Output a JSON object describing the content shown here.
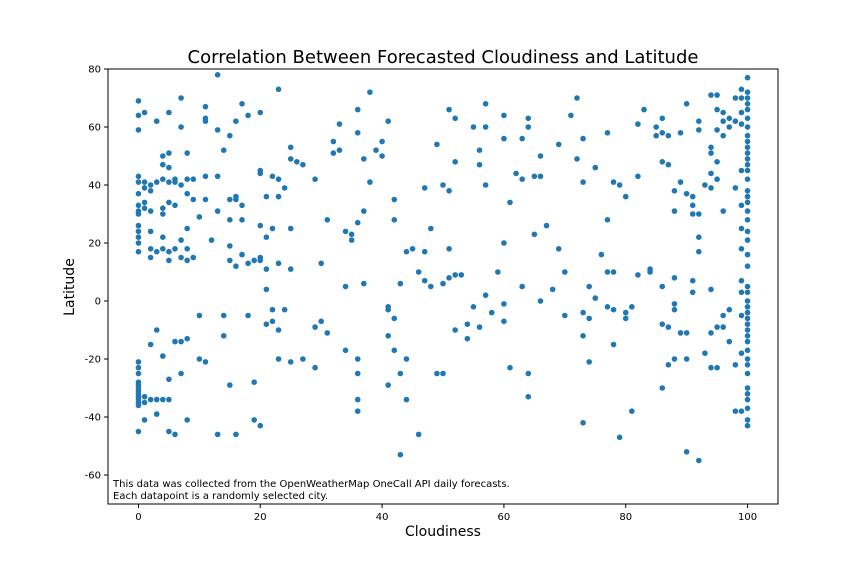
{
  "chart_data": {
    "type": "scatter",
    "title": "Correlation Between Forecasted Cloudiness and Latitude",
    "xlabel": "Cloudiness",
    "ylabel": "Latitude",
    "xlim": [
      -5,
      105
    ],
    "ylim": [
      -70,
      80
    ],
    "xticks": [
      0,
      20,
      40,
      60,
      80,
      100
    ],
    "yticks": [
      -60,
      -40,
      -20,
      0,
      20,
      40,
      60,
      80
    ],
    "grid": false,
    "marker_color": "#1f77b4",
    "annotation": [
      "This data was collected from the OpenWeatherMap OneCall API daily forecasts.",
      "Each datapoint is a randomly selected city."
    ],
    "points": [
      [
        0,
        69
      ],
      [
        0,
        64
      ],
      [
        0,
        59
      ],
      [
        0,
        43
      ],
      [
        0,
        41
      ],
      [
        0,
        37
      ],
      [
        0,
        33
      ],
      [
        0,
        31
      ],
      [
        0,
        30
      ],
      [
        0,
        26
      ],
      [
        0,
        24
      ],
      [
        0,
        22
      ],
      [
        0,
        20
      ],
      [
        0,
        17
      ],
      [
        0,
        -21
      ],
      [
        0,
        -23
      ],
      [
        0,
        -25
      ],
      [
        0,
        -28
      ],
      [
        0,
        -29
      ],
      [
        0,
        -30
      ],
      [
        0,
        -31
      ],
      [
        0,
        -32
      ],
      [
        0,
        -33
      ],
      [
        0,
        -34
      ],
      [
        0,
        -35
      ],
      [
        0,
        -36
      ],
      [
        0,
        -45
      ],
      [
        1,
        65
      ],
      [
        1,
        41
      ],
      [
        1,
        39
      ],
      [
        1,
        34
      ],
      [
        1,
        32
      ],
      [
        1,
        -33
      ],
      [
        1,
        -35
      ],
      [
        1,
        -41
      ],
      [
        2,
        40
      ],
      [
        2,
        38
      ],
      [
        2,
        31
      ],
      [
        2,
        24
      ],
      [
        2,
        18
      ],
      [
        2,
        15
      ],
      [
        2,
        -15
      ],
      [
        2,
        -34
      ],
      [
        3,
        62
      ],
      [
        3,
        41
      ],
      [
        3,
        17
      ],
      [
        3,
        -10
      ],
      [
        3,
        -34
      ],
      [
        3,
        -39
      ],
      [
        4,
        50
      ],
      [
        4,
        47
      ],
      [
        4,
        42
      ],
      [
        4,
        32
      ],
      [
        4,
        30
      ],
      [
        4,
        22
      ],
      [
        4,
        18
      ],
      [
        4,
        -19
      ],
      [
        4,
        -34
      ],
      [
        5,
        65
      ],
      [
        5,
        51
      ],
      [
        5,
        46
      ],
      [
        5,
        41
      ],
      [
        5,
        34
      ],
      [
        5,
        17
      ],
      [
        5,
        14
      ],
      [
        5,
        -27
      ],
      [
        5,
        -34
      ],
      [
        5,
        -45
      ],
      [
        6,
        42
      ],
      [
        6,
        41
      ],
      [
        6,
        33
      ],
      [
        6,
        18
      ],
      [
        6,
        -14
      ],
      [
        6,
        -46
      ],
      [
        7,
        70
      ],
      [
        7,
        60
      ],
      [
        7,
        40
      ],
      [
        7,
        21
      ],
      [
        7,
        15
      ],
      [
        7,
        -14
      ],
      [
        7,
        -25
      ],
      [
        8,
        51
      ],
      [
        8,
        42
      ],
      [
        8,
        37
      ],
      [
        8,
        25
      ],
      [
        8,
        18
      ],
      [
        8,
        14
      ],
      [
        8,
        -13
      ],
      [
        8,
        -41
      ],
      [
        9,
        42
      ],
      [
        9,
        35
      ],
      [
        9,
        15
      ],
      [
        10,
        29
      ],
      [
        10,
        -5
      ],
      [
        10,
        -20
      ],
      [
        11,
        67
      ],
      [
        11,
        63
      ],
      [
        11,
        62
      ],
      [
        11,
        43
      ],
      [
        11,
        35
      ],
      [
        11,
        -21
      ],
      [
        12,
        21
      ],
      [
        13,
        78
      ],
      [
        13,
        59
      ],
      [
        13,
        43
      ],
      [
        13,
        31
      ],
      [
        13,
        -46
      ],
      [
        14,
        52
      ],
      [
        14,
        -5
      ],
      [
        14,
        -12
      ],
      [
        15,
        57
      ],
      [
        15,
        35
      ],
      [
        15,
        28
      ],
      [
        15,
        19
      ],
      [
        15,
        14
      ],
      [
        15,
        -29
      ],
      [
        16,
        62
      ],
      [
        16,
        36
      ],
      [
        16,
        35
      ],
      [
        16,
        12
      ],
      [
        16,
        -46
      ],
      [
        17,
        68
      ],
      [
        17,
        33
      ],
      [
        17,
        28
      ],
      [
        17,
        16
      ],
      [
        18,
        64
      ],
      [
        18,
        13
      ],
      [
        18,
        -5
      ],
      [
        19,
        14
      ],
      [
        19,
        -28
      ],
      [
        19,
        -41
      ],
      [
        20,
        65
      ],
      [
        20,
        45
      ],
      [
        20,
        44
      ],
      [
        20,
        26
      ],
      [
        20,
        15
      ],
      [
        20,
        14
      ],
      [
        20,
        -43
      ],
      [
        21,
        36
      ],
      [
        21,
        22
      ],
      [
        21,
        11
      ],
      [
        21,
        4
      ],
      [
        21,
        -8
      ],
      [
        22,
        43
      ],
      [
        22,
        25
      ],
      [
        22,
        -3
      ],
      [
        22,
        -7
      ],
      [
        23,
        73
      ],
      [
        23,
        42
      ],
      [
        23,
        36
      ],
      [
        23,
        13
      ],
      [
        23,
        -10
      ],
      [
        23,
        -20
      ],
      [
        24,
        39
      ],
      [
        24,
        -3
      ],
      [
        25,
        53
      ],
      [
        25,
        49
      ],
      [
        25,
        25
      ],
      [
        25,
        11
      ],
      [
        25,
        -21
      ],
      [
        26,
        48
      ],
      [
        27,
        47
      ],
      [
        27,
        -20
      ],
      [
        29,
        42
      ],
      [
        29,
        -9
      ],
      [
        29,
        -23
      ],
      [
        30,
        13
      ],
      [
        30,
        -7
      ],
      [
        31,
        28
      ],
      [
        31,
        -11
      ],
      [
        32,
        55
      ],
      [
        32,
        51
      ],
      [
        33,
        61
      ],
      [
        33,
        52
      ],
      [
        34,
        24
      ],
      [
        34,
        5
      ],
      [
        34,
        -17
      ],
      [
        35,
        23
      ],
      [
        35,
        21
      ],
      [
        36,
        66
      ],
      [
        36,
        58
      ],
      [
        36,
        27
      ],
      [
        36,
        -20
      ],
      [
        36,
        -25
      ],
      [
        36,
        -34
      ],
      [
        36,
        -38
      ],
      [
        37,
        49
      ],
      [
        37,
        31
      ],
      [
        37,
        6
      ],
      [
        38,
        72
      ],
      [
        38,
        41
      ],
      [
        39,
        52
      ],
      [
        40,
        55
      ],
      [
        40,
        50
      ],
      [
        41,
        62
      ],
      [
        41,
        -2
      ],
      [
        41,
        -3
      ],
      [
        41,
        -12
      ],
      [
        41,
        -29
      ],
      [
        42,
        35
      ],
      [
        42,
        28
      ],
      [
        42,
        -6
      ],
      [
        42,
        -17
      ],
      [
        43,
        6
      ],
      [
        43,
        -25
      ],
      [
        43,
        -53
      ],
      [
        44,
        17
      ],
      [
        44,
        -20
      ],
      [
        44,
        -34
      ],
      [
        45,
        18
      ],
      [
        46,
        10
      ],
      [
        46,
        -46
      ],
      [
        47,
        39
      ],
      [
        47,
        17
      ],
      [
        47,
        7
      ],
      [
        48,
        25
      ],
      [
        48,
        5
      ],
      [
        49,
        54
      ],
      [
        49,
        -25
      ],
      [
        50,
        40
      ],
      [
        50,
        6
      ],
      [
        50,
        -25
      ],
      [
        51,
        66
      ],
      [
        51,
        38
      ],
      [
        51,
        18
      ],
      [
        51,
        8
      ],
      [
        52,
        48
      ],
      [
        52,
        63
      ],
      [
        52,
        9
      ],
      [
        52,
        -10
      ],
      [
        53,
        9
      ],
      [
        54,
        -8
      ],
      [
        54,
        -13
      ],
      [
        55,
        60
      ],
      [
        55,
        -2
      ],
      [
        56,
        52
      ],
      [
        56,
        47
      ],
      [
        56,
        -9
      ],
      [
        57,
        68
      ],
      [
        57,
        60
      ],
      [
        57,
        40
      ],
      [
        57,
        2
      ],
      [
        58,
        -4
      ],
      [
        59,
        10
      ],
      [
        60,
        64
      ],
      [
        60,
        56
      ],
      [
        60,
        20
      ],
      [
        60,
        -1
      ],
      [
        60,
        -7
      ],
      [
        61,
        34
      ],
      [
        61,
        -23
      ],
      [
        62,
        44
      ],
      [
        63,
        56
      ],
      [
        63,
        42
      ],
      [
        63,
        5
      ],
      [
        64,
        63
      ],
      [
        64,
        60
      ],
      [
        64,
        -25
      ],
      [
        64,
        -33
      ],
      [
        65,
        43
      ],
      [
        65,
        23
      ],
      [
        66,
        50
      ],
      [
        66,
        43
      ],
      [
        66,
        0
      ],
      [
        67,
        26
      ],
      [
        68,
        4
      ],
      [
        69,
        54
      ],
      [
        69,
        18
      ],
      [
        70,
        10
      ],
      [
        70,
        -5
      ],
      [
        71,
        64
      ],
      [
        72,
        70
      ],
      [
        72,
        49
      ],
      [
        73,
        56
      ],
      [
        73,
        41
      ],
      [
        73,
        -4
      ],
      [
        73,
        -12
      ],
      [
        73,
        -42
      ],
      [
        74,
        5
      ],
      [
        74,
        -6
      ],
      [
        74,
        -21
      ],
      [
        75,
        46
      ],
      [
        75,
        1
      ],
      [
        76,
        16
      ],
      [
        77,
        58
      ],
      [
        77,
        28
      ],
      [
        77,
        10
      ],
      [
        77,
        -2
      ],
      [
        78,
        41
      ],
      [
        78,
        10
      ],
      [
        78,
        -3
      ],
      [
        78,
        -15
      ],
      [
        79,
        -47
      ],
      [
        79,
        40
      ],
      [
        80,
        36
      ],
      [
        80,
        -4
      ],
      [
        80,
        -6
      ],
      [
        81,
        -2
      ],
      [
        81,
        -38
      ],
      [
        82,
        61
      ],
      [
        82,
        43
      ],
      [
        82,
        9
      ],
      [
        83,
        66
      ],
      [
        84,
        10
      ],
      [
        84,
        11
      ],
      [
        85,
        60
      ],
      [
        85,
        57
      ],
      [
        86,
        63
      ],
      [
        86,
        58
      ],
      [
        86,
        48
      ],
      [
        86,
        5
      ],
      [
        86,
        -8
      ],
      [
        86,
        -30
      ],
      [
        87,
        57
      ],
      [
        87,
        47
      ],
      [
        87,
        -9
      ],
      [
        87,
        -22
      ],
      [
        88,
        38
      ],
      [
        88,
        31
      ],
      [
        88,
        8
      ],
      [
        88,
        -1
      ],
      [
        88,
        -3
      ],
      [
        88,
        -20
      ],
      [
        89,
        58
      ],
      [
        89,
        41
      ],
      [
        89,
        -11
      ],
      [
        90,
        68
      ],
      [
        90,
        37
      ],
      [
        90,
        -11
      ],
      [
        90,
        -20
      ],
      [
        90,
        -52
      ],
      [
        91,
        36
      ],
      [
        91,
        33
      ],
      [
        91,
        30
      ],
      [
        91,
        7
      ],
      [
        91,
        3
      ],
      [
        92,
        62
      ],
      [
        92,
        59
      ],
      [
        92,
        30
      ],
      [
        92,
        22
      ],
      [
        92,
        17
      ],
      [
        92,
        -55
      ],
      [
        93,
        40
      ],
      [
        93,
        -18
      ],
      [
        94,
        71
      ],
      [
        94,
        53
      ],
      [
        94,
        51
      ],
      [
        94,
        44
      ],
      [
        94,
        39
      ],
      [
        94,
        4
      ],
      [
        94,
        -11
      ],
      [
        94,
        -23
      ],
      [
        95,
        71
      ],
      [
        95,
        66
      ],
      [
        95,
        59
      ],
      [
        95,
        48
      ],
      [
        95,
        42
      ],
      [
        95,
        -9
      ],
      [
        95,
        -23
      ],
      [
        96,
        65
      ],
      [
        96,
        62
      ],
      [
        96,
        57
      ],
      [
        96,
        31
      ],
      [
        96,
        -5
      ],
      [
        96,
        -9
      ],
      [
        97,
        63
      ],
      [
        97,
        60
      ],
      [
        97,
        -3
      ],
      [
        97,
        -14
      ],
      [
        98,
        70
      ],
      [
        98,
        62
      ],
      [
        98,
        39
      ],
      [
        98,
        -22
      ],
      [
        98,
        -38
      ],
      [
        99,
        73
      ],
      [
        99,
        70
      ],
      [
        99,
        65
      ],
      [
        99,
        61
      ],
      [
        99,
        45
      ],
      [
        99,
        33
      ],
      [
        99,
        25
      ],
      [
        99,
        18
      ],
      [
        99,
        7
      ],
      [
        99,
        3
      ],
      [
        99,
        -5
      ],
      [
        99,
        -18
      ],
      [
        99,
        -38
      ],
      [
        100,
        77
      ],
      [
        100,
        72
      ],
      [
        100,
        70
      ],
      [
        100,
        68
      ],
      [
        100,
        66
      ],
      [
        100,
        63
      ],
      [
        100,
        60
      ],
      [
        100,
        57
      ],
      [
        100,
        55
      ],
      [
        100,
        53
      ],
      [
        100,
        51
      ],
      [
        100,
        49
      ],
      [
        100,
        47
      ],
      [
        100,
        45
      ],
      [
        100,
        42
      ],
      [
        100,
        38
      ],
      [
        100,
        36
      ],
      [
        100,
        34
      ],
      [
        100,
        31
      ],
      [
        100,
        28
      ],
      [
        100,
        24
      ],
      [
        100,
        21
      ],
      [
        100,
        16
      ],
      [
        100,
        12
      ],
      [
        100,
        5
      ],
      [
        100,
        3
      ],
      [
        100,
        0
      ],
      [
        100,
        -2
      ],
      [
        100,
        -4
      ],
      [
        100,
        -6
      ],
      [
        100,
        -8
      ],
      [
        100,
        -10
      ],
      [
        100,
        -12
      ],
      [
        100,
        -14
      ],
      [
        100,
        -17
      ],
      [
        100,
        -20
      ],
      [
        100,
        -22
      ],
      [
        100,
        -25
      ],
      [
        100,
        -30
      ],
      [
        100,
        -32
      ],
      [
        100,
        -34
      ],
      [
        100,
        -37
      ],
      [
        100,
        -41
      ],
      [
        100,
        -43
      ]
    ]
  }
}
